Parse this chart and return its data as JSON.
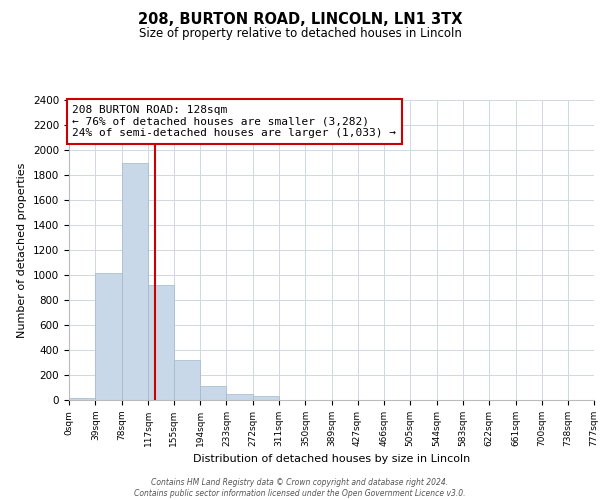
{
  "title": "208, BURTON ROAD, LINCOLN, LN1 3TX",
  "subtitle": "Size of property relative to detached houses in Lincoln",
  "xlabel": "Distribution of detached houses by size in Lincoln",
  "ylabel": "Number of detached properties",
  "bin_edges": [
    0,
    39,
    78,
    117,
    155,
    194,
    233,
    272,
    311,
    350,
    389,
    427,
    466,
    505,
    544,
    583,
    622,
    661,
    700,
    738,
    777
  ],
  "bin_labels": [
    "0sqm",
    "39sqm",
    "78sqm",
    "117sqm",
    "155sqm",
    "194sqm",
    "233sqm",
    "272sqm",
    "311sqm",
    "350sqm",
    "389sqm",
    "427sqm",
    "466sqm",
    "505sqm",
    "544sqm",
    "583sqm",
    "622sqm",
    "661sqm",
    "700sqm",
    "738sqm",
    "777sqm"
  ],
  "bar_heights": [
    20,
    1020,
    1900,
    920,
    320,
    110,
    50,
    30,
    0,
    0,
    0,
    0,
    0,
    0,
    0,
    0,
    0,
    0,
    0,
    0
  ],
  "bar_color": "#c8d8e8",
  "bar_edgecolor": "#a0b8cc",
  "property_line_x": 128,
  "property_line_color": "#cc0000",
  "annotation_text": "208 BURTON ROAD: 128sqm\n← 76% of detached houses are smaller (3,282)\n24% of semi-detached houses are larger (1,033) →",
  "annotation_box_edgecolor": "#cc0000",
  "annotation_box_facecolor": "#ffffff",
  "ylim": [
    0,
    2400
  ],
  "yticks": [
    0,
    200,
    400,
    600,
    800,
    1000,
    1200,
    1400,
    1600,
    1800,
    2000,
    2200,
    2400
  ],
  "footer_text": "Contains HM Land Registry data © Crown copyright and database right 2024.\nContains public sector information licensed under the Open Government Licence v3.0.",
  "background_color": "#ffffff",
  "grid_color": "#d0d8e0"
}
